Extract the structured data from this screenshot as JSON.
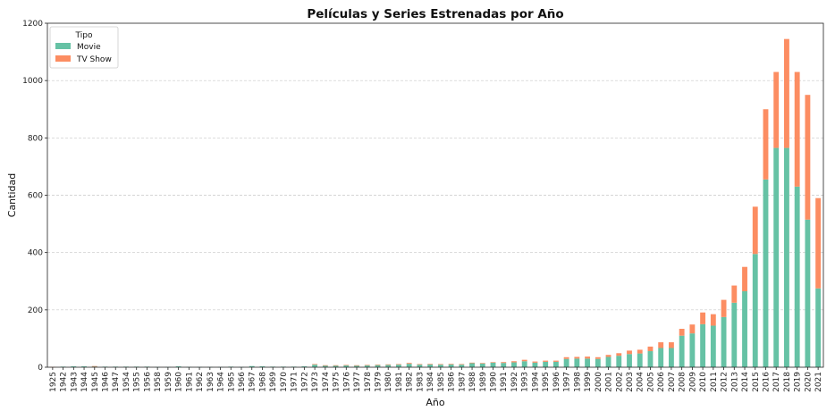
{
  "chart_data": {
    "type": "bar",
    "stacked": true,
    "title": "Películas y Series Estrenadas por Año",
    "xlabel": "Año",
    "ylabel": "Cantidad",
    "ylim": [
      0,
      1200
    ],
    "yticks": [
      0,
      200,
      400,
      600,
      800,
      1000,
      1200
    ],
    "grid": "y-dashed",
    "legend": {
      "title": "Tipo",
      "placement": "top-left"
    },
    "categories": [
      "1925",
      "1942",
      "1943",
      "1944",
      "1945",
      "1946",
      "1947",
      "1954",
      "1955",
      "1956",
      "1958",
      "1959",
      "1960",
      "1961",
      "1962",
      "1963",
      "1964",
      "1965",
      "1966",
      "1967",
      "1968",
      "1969",
      "1970",
      "1971",
      "1972",
      "1973",
      "1974",
      "1975",
      "1976",
      "1977",
      "1978",
      "1979",
      "1980",
      "1981",
      "1982",
      "1983",
      "1984",
      "1985",
      "1986",
      "1987",
      "1988",
      "1989",
      "1990",
      "1991",
      "1992",
      "1993",
      "1994",
      "1995",
      "1996",
      "1997",
      "1998",
      "1999",
      "2000",
      "2001",
      "2002",
      "2003",
      "2004",
      "2005",
      "2006",
      "2007",
      "2008",
      "2009",
      "2010",
      "2011",
      "2012",
      "2013",
      "2014",
      "2015",
      "2016",
      "2017",
      "2018",
      "2019",
      "2020",
      "2021"
    ],
    "series": [
      {
        "name": "Movie",
        "color": "#66c2a5",
        "values": [
          0,
          2,
          3,
          3,
          3,
          2,
          2,
          2,
          2,
          2,
          1,
          1,
          3,
          1,
          1,
          1,
          1,
          2,
          1,
          4,
          3,
          2,
          2,
          2,
          3,
          9,
          6,
          6,
          7,
          6,
          7,
          8,
          8,
          9,
          12,
          9,
          10,
          9,
          10,
          9,
          14,
          13,
          16,
          15,
          17,
          21,
          16,
          19,
          19,
          29,
          30,
          30,
          29,
          36,
          40,
          46,
          48,
          56,
          67,
          67,
          110,
          118,
          150,
          145,
          175,
          225,
          265,
          395,
          655,
          765,
          765,
          630,
          515,
          275
        ]
      },
      {
        "name": "TV Show",
        "color": "#fc8d62",
        "values": [
          1,
          0,
          0,
          0,
          1,
          0,
          0,
          0,
          0,
          0,
          0,
          0,
          0,
          0,
          0,
          0,
          0,
          0,
          0,
          0,
          0,
          0,
          0,
          0,
          0,
          2,
          1,
          1,
          1,
          1,
          1,
          1,
          2,
          2,
          3,
          2,
          2,
          2,
          2,
          2,
          2,
          2,
          2,
          3,
          4,
          5,
          4,
          4,
          4,
          6,
          6,
          7,
          6,
          7,
          9,
          12,
          13,
          16,
          20,
          20,
          24,
          31,
          41,
          40,
          60,
          60,
          85,
          165,
          245,
          265,
          380,
          400,
          435,
          315
        ]
      }
    ]
  }
}
